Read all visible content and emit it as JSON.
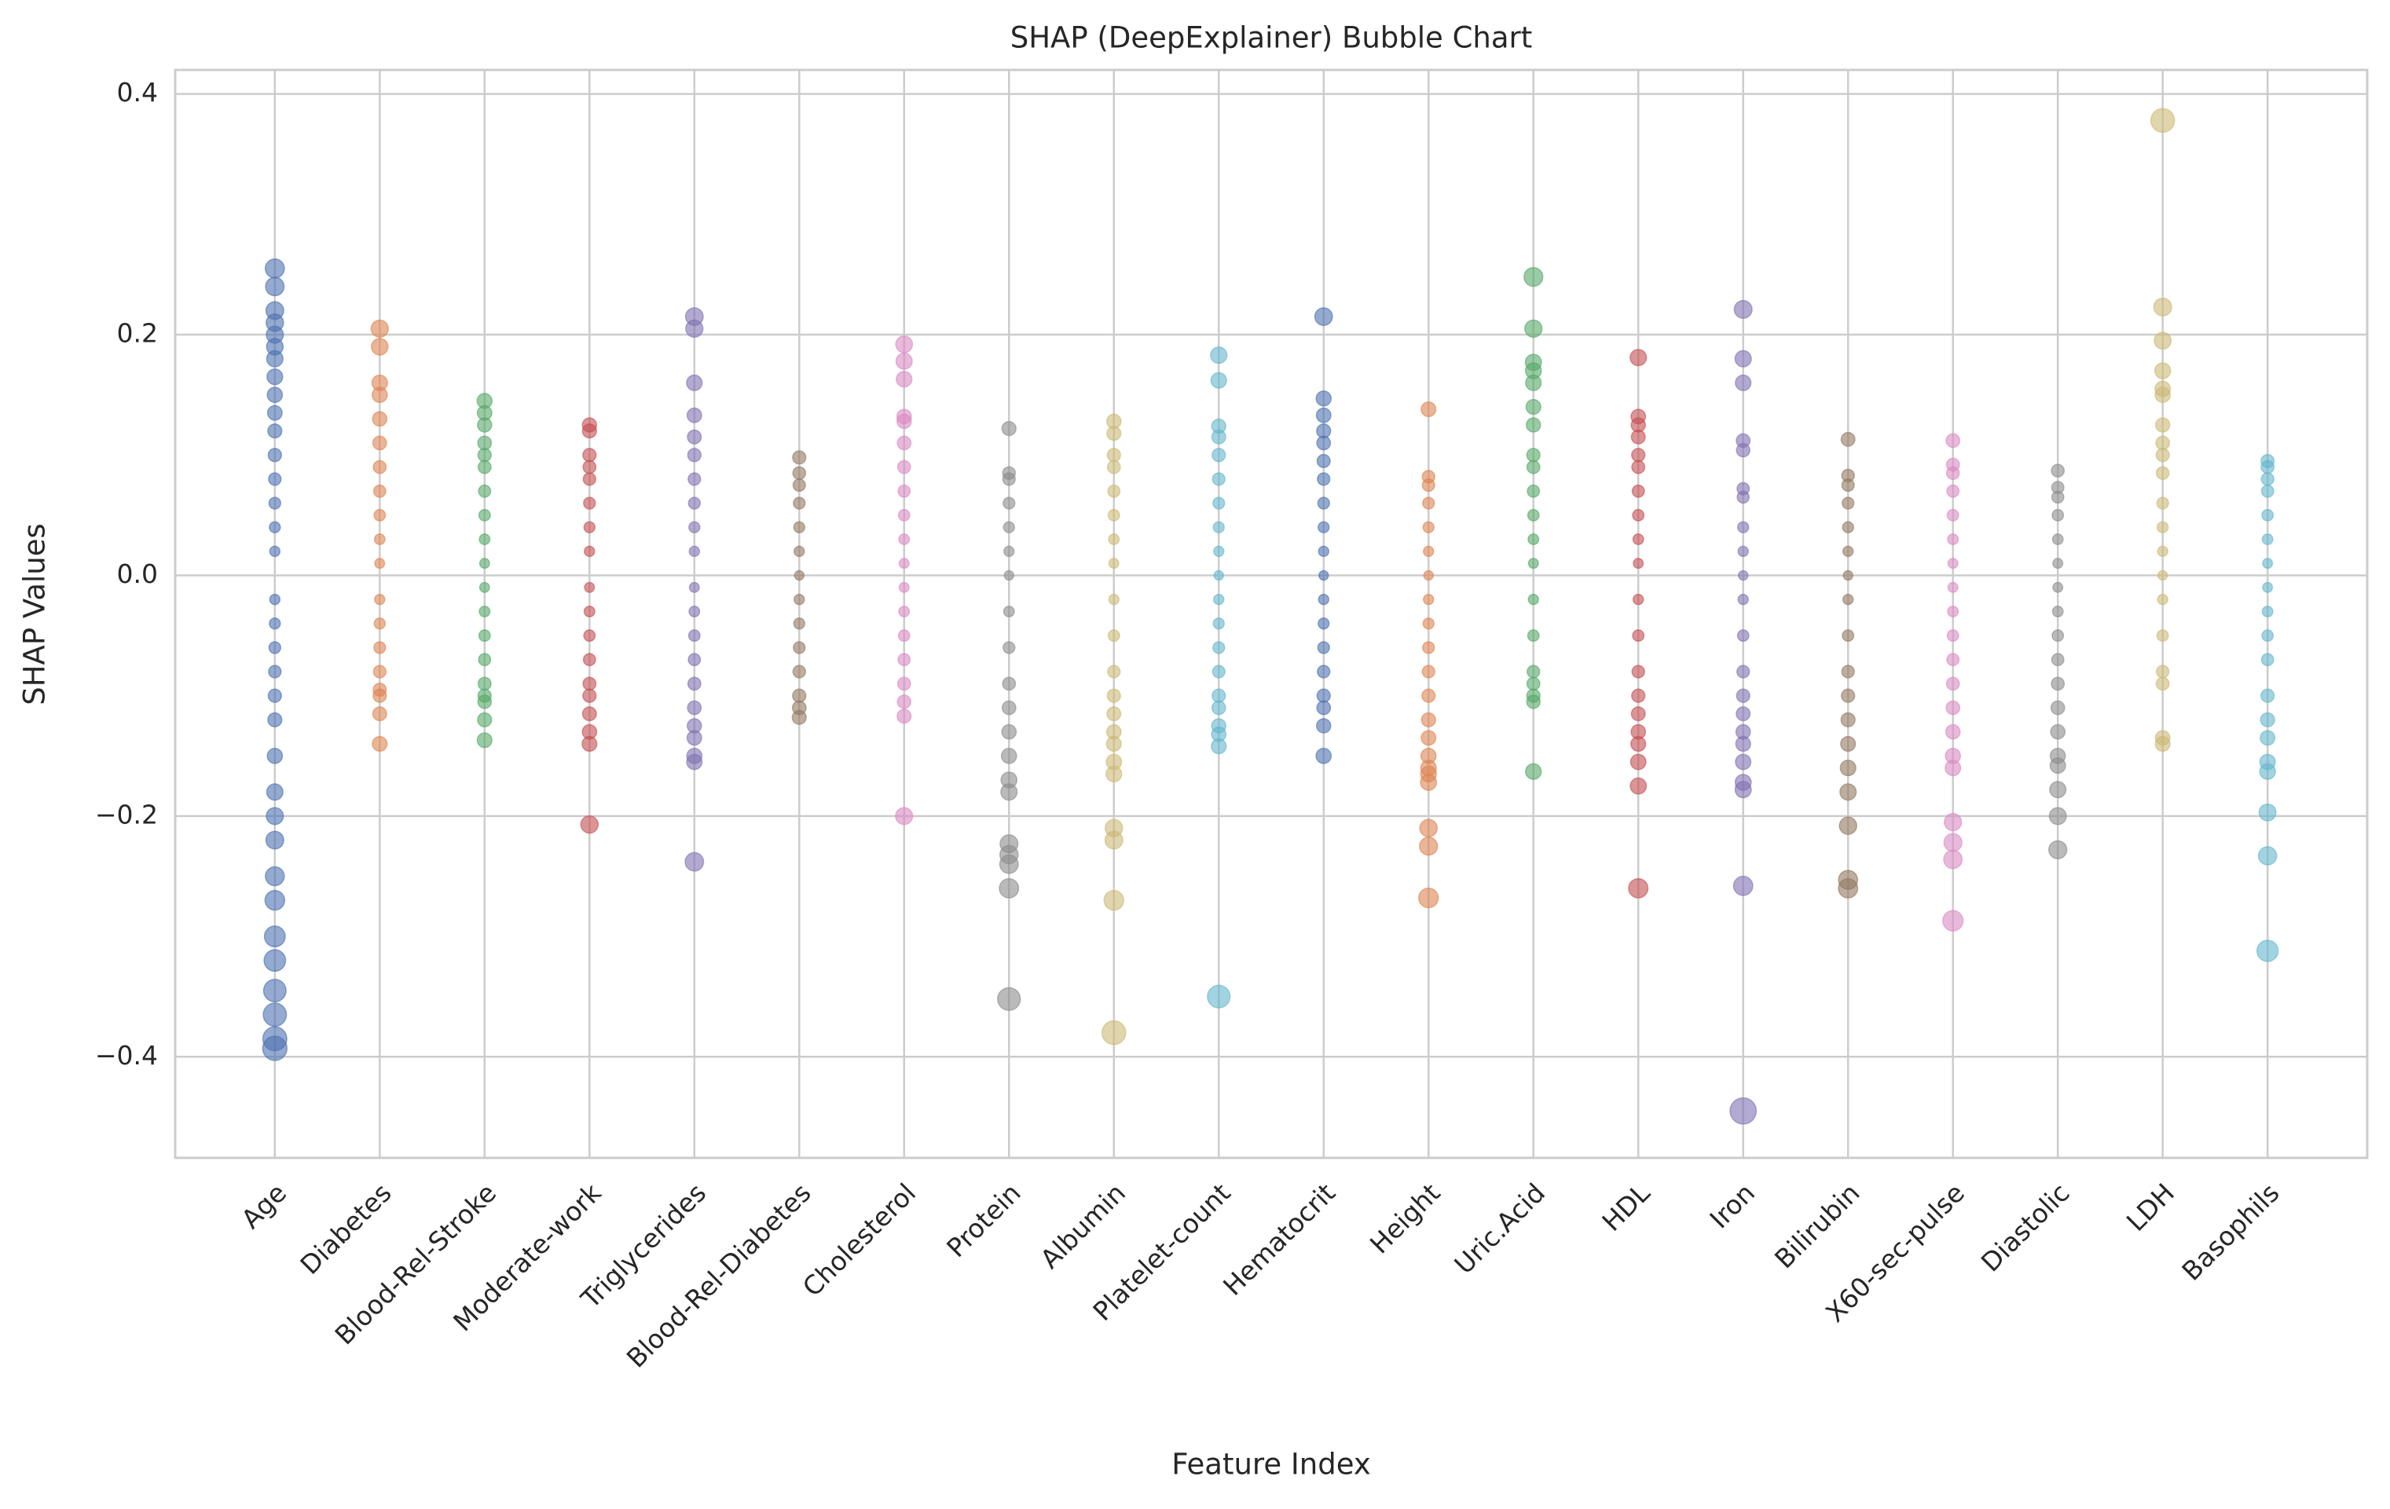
{
  "chart_data": {
    "type": "bubble",
    "title": "SHAP (DeepExplainer) Bubble Chart",
    "x_label": "Feature Index",
    "y_label": "SHAP Values",
    "categories": [
      "Age",
      "Diabetes",
      "Blood-Rel-Stroke",
      "Moderate-work",
      "Triglycerides",
      "Blood-Rel-Diabetes",
      "Cholesterol",
      "Protein",
      "Albumin",
      "Platelet-count",
      "Hematocrit",
      "Height",
      "Uric.Acid",
      "HDL",
      "Iron",
      "Bilirubin",
      "X60-sec-pulse",
      "Diastolic",
      "LDH",
      "Basophils"
    ],
    "colors": [
      "#4c72b0",
      "#dd8452",
      "#55a868",
      "#c44e52",
      "#8172b3",
      "#937860",
      "#da8bc3",
      "#8c8c8c",
      "#ccb974",
      "#64b5cd",
      "#4c72b0",
      "#dd8452",
      "#55a868",
      "#c44e52",
      "#8172b3",
      "#937860",
      "#da8bc3",
      "#8c8c8c",
      "#ccb974",
      "#64b5cd"
    ],
    "values": [
      [
        0.255,
        0.24,
        0.22,
        0.21,
        0.2,
        0.19,
        0.18,
        0.165,
        0.15,
        0.135,
        0.12,
        0.1,
        0.08,
        0.06,
        0.04,
        0.02,
        -0.02,
        -0.04,
        -0.06,
        -0.08,
        -0.1,
        -0.12,
        -0.15,
        -0.18,
        -0.2,
        -0.22,
        -0.25,
        -0.27,
        -0.3,
        -0.32,
        -0.345,
        -0.365,
        -0.385,
        -0.393
      ],
      [
        0.205,
        0.19,
        0.16,
        0.15,
        0.13,
        0.11,
        0.09,
        0.07,
        0.05,
        0.03,
        0.01,
        -0.02,
        -0.04,
        -0.06,
        -0.08,
        -0.095,
        -0.1,
        -0.115,
        -0.14
      ],
      [
        0.145,
        0.135,
        0.125,
        0.11,
        0.1,
        0.09,
        0.07,
        0.05,
        0.03,
        0.01,
        -0.01,
        -0.03,
        -0.05,
        -0.07,
        -0.09,
        -0.1,
        -0.105,
        -0.12,
        -0.137
      ],
      [
        0.125,
        0.12,
        0.1,
        0.09,
        0.08,
        0.06,
        0.04,
        0.02,
        -0.01,
        -0.03,
        -0.05,
        -0.07,
        -0.09,
        -0.1,
        -0.115,
        -0.13,
        -0.14,
        -0.207
      ],
      [
        0.215,
        0.205,
        0.16,
        0.133,
        0.115,
        0.1,
        0.08,
        0.06,
        0.04,
        0.02,
        -0.01,
        -0.03,
        -0.05,
        -0.07,
        -0.09,
        -0.11,
        -0.125,
        -0.135,
        -0.15,
        -0.155,
        -0.238
      ],
      [
        0.098,
        0.085,
        0.075,
        0.06,
        0.04,
        0.02,
        0,
        -0.02,
        -0.04,
        -0.06,
        -0.08,
        -0.1,
        -0.11,
        -0.118
      ],
      [
        0.192,
        0.178,
        0.163,
        0.132,
        0.128,
        0.11,
        0.09,
        0.07,
        0.05,
        0.03,
        0.01,
        -0.01,
        -0.03,
        -0.05,
        -0.07,
        -0.09,
        -0.105,
        -0.117,
        -0.2
      ],
      [
        0.122,
        0.085,
        0.08,
        0.06,
        0.04,
        0.02,
        0,
        -0.03,
        -0.06,
        -0.09,
        -0.11,
        -0.13,
        -0.15,
        -0.17,
        -0.18,
        -0.223,
        -0.232,
        -0.24,
        -0.26,
        -0.352
      ],
      [
        0.128,
        0.118,
        0.1,
        0.09,
        0.07,
        0.05,
        0.03,
        0.01,
        -0.02,
        -0.05,
        -0.08,
        -0.1,
        -0.115,
        -0.13,
        -0.14,
        -0.155,
        -0.165,
        -0.21,
        -0.22,
        -0.27,
        -0.38
      ],
      [
        0.183,
        0.162,
        0.124,
        0.115,
        0.1,
        0.08,
        0.06,
        0.04,
        0.02,
        0,
        -0.02,
        -0.04,
        -0.06,
        -0.08,
        -0.1,
        -0.11,
        -0.125,
        -0.132,
        -0.142,
        -0.35
      ],
      [
        0.215,
        0.147,
        0.133,
        0.12,
        0.11,
        0.095,
        0.08,
        0.06,
        0.04,
        0.02,
        0,
        -0.02,
        -0.04,
        -0.06,
        -0.08,
        -0.1,
        -0.11,
        -0.125,
        -0.15
      ],
      [
        0.138,
        0.082,
        0.075,
        0.06,
        0.04,
        0.02,
        0,
        -0.02,
        -0.04,
        -0.06,
        -0.08,
        -0.1,
        -0.12,
        -0.135,
        -0.15,
        -0.16,
        -0.165,
        -0.172,
        -0.21,
        -0.225,
        -0.268
      ],
      [
        0.248,
        0.205,
        0.177,
        0.17,
        0.16,
        0.14,
        0.125,
        0.1,
        0.09,
        0.07,
        0.05,
        0.03,
        0.01,
        -0.02,
        -0.05,
        -0.08,
        -0.09,
        -0.1,
        -0.105,
        -0.163
      ],
      [
        0.181,
        0.132,
        0.125,
        0.115,
        0.1,
        0.09,
        0.07,
        0.05,
        0.03,
        0.01,
        -0.02,
        -0.05,
        -0.08,
        -0.1,
        -0.115,
        -0.13,
        -0.14,
        -0.155,
        -0.175,
        -0.26
      ],
      [
        0.221,
        0.18,
        0.16,
        0.112,
        0.104,
        0.072,
        0.065,
        0.04,
        0.02,
        0,
        -0.02,
        -0.05,
        -0.08,
        -0.1,
        -0.115,
        -0.13,
        -0.14,
        -0.155,
        -0.172,
        -0.178,
        -0.258,
        -0.445
      ],
      [
        0.113,
        0.083,
        0.075,
        0.06,
        0.04,
        0.02,
        0,
        -0.02,
        -0.05,
        -0.08,
        -0.1,
        -0.12,
        -0.14,
        -0.16,
        -0.18,
        -0.208,
        -0.253,
        -0.26
      ],
      [
        0.112,
        0.092,
        0.085,
        0.07,
        0.05,
        0.03,
        0.01,
        -0.01,
        -0.03,
        -0.05,
        -0.07,
        -0.09,
        -0.11,
        -0.13,
        -0.15,
        -0.16,
        -0.205,
        -0.222,
        -0.236,
        -0.287
      ],
      [
        0.087,
        0.073,
        0.065,
        0.05,
        0.03,
        0.01,
        -0.01,
        -0.03,
        -0.05,
        -0.07,
        -0.09,
        -0.11,
        -0.13,
        -0.15,
        -0.158,
        -0.178,
        -0.2,
        -0.228
      ],
      [
        0.378,
        0.223,
        0.195,
        0.17,
        0.155,
        0.15,
        0.125,
        0.11,
        0.1,
        0.085,
        0.06,
        0.04,
        0.02,
        0,
        -0.02,
        -0.05,
        -0.08,
        -0.09,
        -0.135,
        -0.14
      ],
      [
        0.095,
        0.09,
        0.08,
        0.07,
        0.05,
        0.03,
        0.01,
        -0.01,
        -0.03,
        -0.05,
        -0.07,
        -0.1,
        -0.12,
        -0.135,
        -0.155,
        -0.163,
        -0.197,
        -0.233,
        -0.312
      ]
    ],
    "ylim": [
      -0.484,
      0.42
    ],
    "yticks": [
      {
        "value": -0.4,
        "label": "−0.4"
      },
      {
        "value": -0.2,
        "label": "−0.2"
      },
      {
        "value": 0,
        "label": "0.0"
      },
      0.2,
      0.4
    ],
    "grid": true
  }
}
